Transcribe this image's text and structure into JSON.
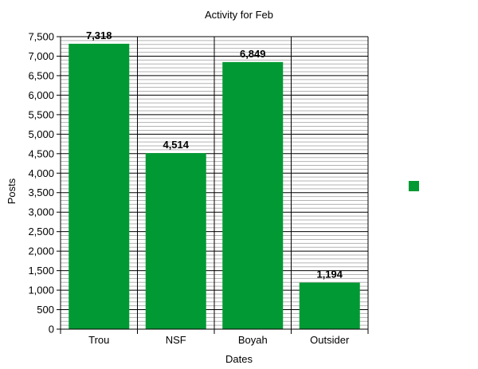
{
  "chart_data": {
    "type": "bar",
    "title": "Activity for Feb",
    "xlabel": "Dates",
    "ylabel": "Posts",
    "categories": [
      "Trou",
      "NSF",
      "Boyah",
      "Outsider"
    ],
    "values": [
      7318,
      4514,
      6849,
      1194
    ],
    "data_labels": [
      "7,318",
      "4,514",
      "6,849",
      "1,194"
    ],
    "ylim": [
      0,
      7500
    ],
    "y_major_step": 500,
    "y_minor_step": 100,
    "y_tick_labels": [
      "0",
      "500",
      "1,000",
      "1,500",
      "2,000",
      "2,500",
      "3,000",
      "3,500",
      "4,000",
      "4,500",
      "5,000",
      "5,500",
      "6,000",
      "6,500",
      "7,000",
      "7,500"
    ],
    "grid": true,
    "legend_placement": "right",
    "bar_color": "#009933"
  }
}
